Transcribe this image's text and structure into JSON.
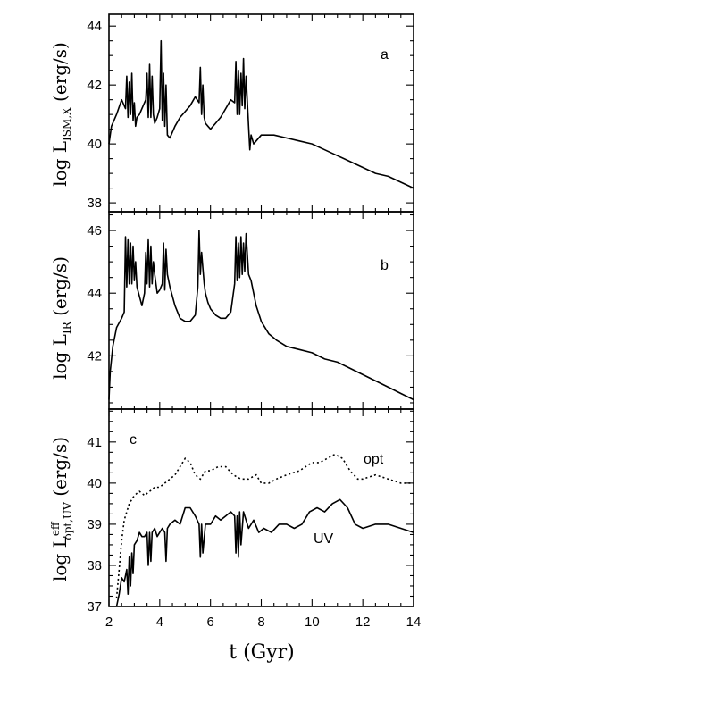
{
  "chart_data": [
    {
      "id": "a",
      "type": "line",
      "panel_label": "a",
      "ylabel": {
        "prefix": "log  L",
        "sub": "ISM,X",
        "suffix": "  (erg/s)"
      },
      "xlim": [
        2,
        14
      ],
      "ylim": [
        37.7,
        44.4
      ],
      "yticks": [
        38,
        40,
        42,
        44
      ],
      "series": [
        {
          "name": "L_ISM,X",
          "style": "solid",
          "x": [
            2.0,
            2.1,
            2.3,
            2.5,
            2.65,
            2.7,
            2.75,
            2.8,
            2.85,
            2.9,
            2.95,
            3.0,
            3.05,
            3.1,
            3.2,
            3.3,
            3.45,
            3.5,
            3.55,
            3.6,
            3.65,
            3.7,
            3.75,
            3.8,
            3.9,
            4.0,
            4.05,
            4.1,
            4.15,
            4.2,
            4.25,
            4.3,
            4.4,
            4.6,
            4.8,
            5.0,
            5.2,
            5.4,
            5.55,
            5.6,
            5.65,
            5.7,
            5.75,
            5.8,
            5.9,
            6.0,
            6.2,
            6.4,
            6.6,
            6.8,
            6.95,
            7.0,
            7.05,
            7.1,
            7.15,
            7.2,
            7.25,
            7.3,
            7.35,
            7.4,
            7.5,
            7.55,
            7.6,
            7.7,
            7.8,
            8.0,
            8.5,
            9.0,
            9.5,
            10.0,
            10.5,
            11.0,
            11.5,
            12.0,
            12.5,
            13.0,
            13.5,
            14.0
          ],
          "y": [
            40.0,
            40.6,
            41.0,
            41.5,
            41.2,
            42.3,
            40.9,
            42.1,
            41.0,
            42.4,
            40.8,
            41.4,
            40.6,
            40.9,
            41.0,
            41.2,
            41.5,
            42.4,
            40.9,
            42.7,
            40.9,
            42.3,
            41.0,
            40.7,
            40.9,
            41.2,
            43.5,
            40.8,
            42.4,
            40.6,
            42.0,
            40.3,
            40.2,
            40.6,
            40.9,
            41.1,
            41.3,
            41.6,
            41.4,
            42.6,
            41.0,
            42.0,
            40.9,
            40.7,
            40.6,
            40.5,
            40.7,
            40.9,
            41.2,
            41.5,
            41.4,
            42.8,
            41.0,
            42.5,
            41.0,
            42.4,
            41.3,
            42.9,
            41.2,
            42.3,
            40.6,
            39.8,
            40.3,
            40.0,
            40.1,
            40.3,
            40.3,
            40.2,
            40.1,
            40.0,
            39.8,
            39.6,
            39.4,
            39.2,
            39.0,
            38.9,
            38.7,
            38.5
          ]
        }
      ]
    },
    {
      "id": "b",
      "type": "line",
      "panel_label": "b",
      "ylabel": {
        "prefix": "log  L",
        "sub": "IR",
        "suffix": "  (erg/s)"
      },
      "xlim": [
        2,
        14
      ],
      "ylim": [
        40.3,
        46.6
      ],
      "yticks": [
        42,
        44,
        46
      ],
      "series": [
        {
          "name": "L_IR",
          "style": "solid",
          "x": [
            2.0,
            2.05,
            2.15,
            2.3,
            2.5,
            2.6,
            2.65,
            2.7,
            2.75,
            2.8,
            2.85,
            2.9,
            2.95,
            3.0,
            3.05,
            3.1,
            3.2,
            3.3,
            3.4,
            3.45,
            3.5,
            3.55,
            3.6,
            3.65,
            3.7,
            3.75,
            3.8,
            3.9,
            4.0,
            4.1,
            4.15,
            4.2,
            4.25,
            4.3,
            4.4,
            4.6,
            4.8,
            5.0,
            5.2,
            5.4,
            5.5,
            5.55,
            5.6,
            5.65,
            5.7,
            5.75,
            5.8,
            5.9,
            6.0,
            6.2,
            6.4,
            6.6,
            6.8,
            6.95,
            7.0,
            7.05,
            7.1,
            7.15,
            7.2,
            7.25,
            7.3,
            7.35,
            7.4,
            7.5,
            7.6,
            7.8,
            8.0,
            8.3,
            8.6,
            9.0,
            9.5,
            10.0,
            10.5,
            11.0,
            11.5,
            12.0,
            12.5,
            13.0,
            13.5,
            14.0
          ],
          "y": [
            40.6,
            41.5,
            42.3,
            42.9,
            43.2,
            43.4,
            45.8,
            44.2,
            45.7,
            44.3,
            45.6,
            44.3,
            45.5,
            44.4,
            45.0,
            44.2,
            43.9,
            43.6,
            44.0,
            45.3,
            44.3,
            45.7,
            44.2,
            45.5,
            44.3,
            45.0,
            44.6,
            44.0,
            44.1,
            44.3,
            45.6,
            44.1,
            45.4,
            44.6,
            44.2,
            43.6,
            43.2,
            43.1,
            43.1,
            43.3,
            44.2,
            46.0,
            44.6,
            45.3,
            44.8,
            44.3,
            44.0,
            43.7,
            43.5,
            43.3,
            43.2,
            43.2,
            43.4,
            44.3,
            45.8,
            44.4,
            45.6,
            44.5,
            45.8,
            44.6,
            45.6,
            44.7,
            45.9,
            44.6,
            44.4,
            43.6,
            43.1,
            42.7,
            42.5,
            42.3,
            42.2,
            42.1,
            41.9,
            41.8,
            41.6,
            41.4,
            41.2,
            41.0,
            40.8,
            40.6
          ]
        }
      ]
    },
    {
      "id": "c",
      "type": "line",
      "panel_label": "c",
      "ylabel": {
        "prefix": "log  L",
        "sup": "eff",
        "sub": "opt,UV",
        "suffix": "  (erg/s)"
      },
      "xlim": [
        2,
        14
      ],
      "ylim": [
        37.0,
        41.8
      ],
      "yticks": [
        37,
        38,
        39,
        40,
        41
      ],
      "xticks": [
        2,
        4,
        6,
        8,
        10,
        12,
        14
      ],
      "xlabel": "t  (Gyr)",
      "series": [
        {
          "name": "opt",
          "label": "opt",
          "style": "dotted",
          "x": [
            2.3,
            2.4,
            2.5,
            2.6,
            2.8,
            3.0,
            3.2,
            3.4,
            3.6,
            3.8,
            4.0,
            4.2,
            4.4,
            4.6,
            4.8,
            5.0,
            5.2,
            5.4,
            5.6,
            5.8,
            6.0,
            6.3,
            6.6,
            6.9,
            7.2,
            7.5,
            7.8,
            8.0,
            8.3,
            8.6,
            9.0,
            9.5,
            10.0,
            10.3,
            10.6,
            10.9,
            11.2,
            11.5,
            11.8,
            12.0,
            12.5,
            13.0,
            13.5,
            14.0
          ],
          "y": [
            37.2,
            37.9,
            38.6,
            39.1,
            39.5,
            39.7,
            39.8,
            39.7,
            39.8,
            39.9,
            39.9,
            40.0,
            40.1,
            40.2,
            40.4,
            40.6,
            40.5,
            40.2,
            40.1,
            40.3,
            40.3,
            40.4,
            40.4,
            40.2,
            40.1,
            40.1,
            40.2,
            40.0,
            40.0,
            40.1,
            40.2,
            40.3,
            40.5,
            40.5,
            40.6,
            40.7,
            40.6,
            40.3,
            40.1,
            40.1,
            40.2,
            40.1,
            40.0,
            40.0
          ]
        },
        {
          "name": "UV",
          "label": "UV",
          "style": "solid",
          "x": [
            2.3,
            2.4,
            2.5,
            2.6,
            2.7,
            2.75,
            2.8,
            2.85,
            2.9,
            2.95,
            3.0,
            3.1,
            3.2,
            3.3,
            3.4,
            3.5,
            3.55,
            3.6,
            3.65,
            3.7,
            3.8,
            3.9,
            4.0,
            4.1,
            4.2,
            4.25,
            4.3,
            4.4,
            4.6,
            4.8,
            5.0,
            5.2,
            5.4,
            5.55,
            5.6,
            5.65,
            5.7,
            5.8,
            6.0,
            6.2,
            6.4,
            6.6,
            6.8,
            6.95,
            7.0,
            7.05,
            7.1,
            7.15,
            7.2,
            7.3,
            7.5,
            7.7,
            7.9,
            8.1,
            8.4,
            8.7,
            9.0,
            9.3,
            9.6,
            9.9,
            10.2,
            10.5,
            10.8,
            11.1,
            11.4,
            11.7,
            12.0,
            12.5,
            13.0,
            13.5,
            14.0
          ],
          "y": [
            37.0,
            37.3,
            37.7,
            37.6,
            37.9,
            37.3,
            38.2,
            37.5,
            38.3,
            37.8,
            38.5,
            38.6,
            38.8,
            38.7,
            38.7,
            38.8,
            38.0,
            38.8,
            38.1,
            38.8,
            38.9,
            38.7,
            38.8,
            38.9,
            38.8,
            38.1,
            38.9,
            39.0,
            39.1,
            39.0,
            39.4,
            39.4,
            39.2,
            39.0,
            38.2,
            39.0,
            38.3,
            39.0,
            39.0,
            39.2,
            39.1,
            39.2,
            39.3,
            39.2,
            38.3,
            39.2,
            38.2,
            39.3,
            38.5,
            39.3,
            38.9,
            39.1,
            38.8,
            38.9,
            38.8,
            39.0,
            39.0,
            38.9,
            39.0,
            39.3,
            39.4,
            39.3,
            39.5,
            39.6,
            39.4,
            39.0,
            38.9,
            39.0,
            39.0,
            38.9,
            38.8
          ]
        }
      ]
    }
  ]
}
